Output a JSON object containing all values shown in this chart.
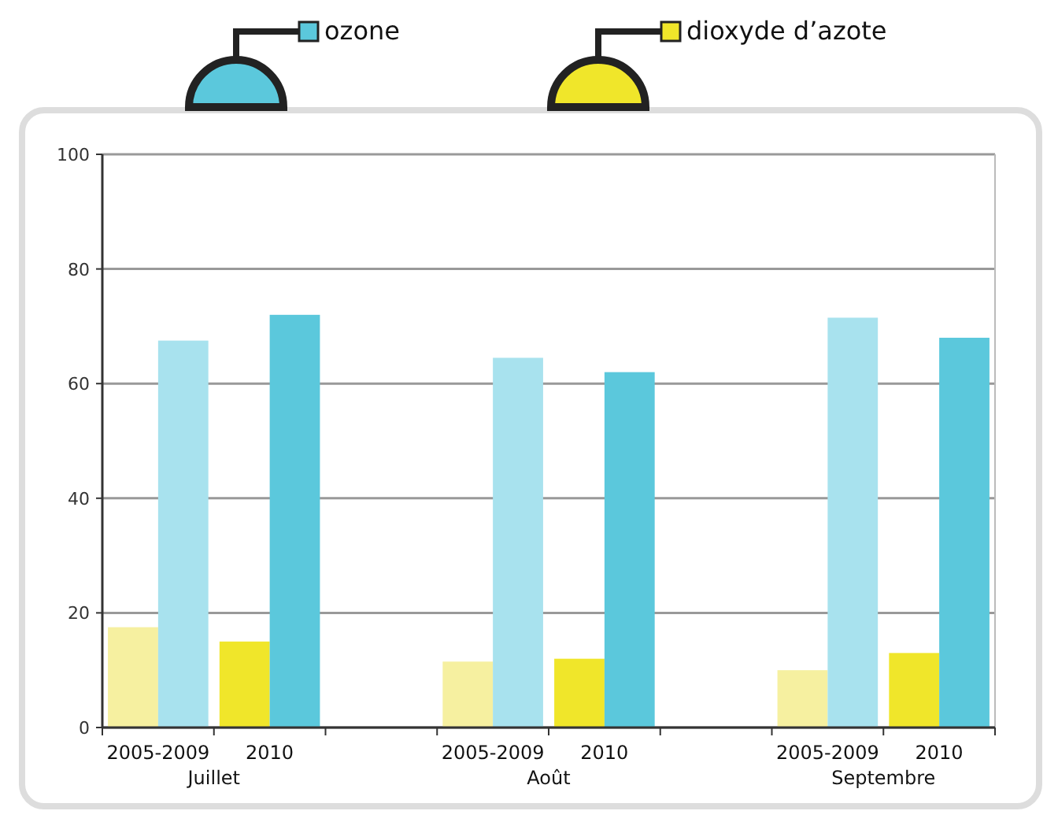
{
  "chart_data": {
    "type": "bar",
    "categories": [
      "2005-2009",
      "2010",
      null,
      "2005-2009",
      "2010",
      null,
      "2005-2009",
      "2010"
    ],
    "series": [
      {
        "name": "dioxyde d’azote",
        "color": "#f0e62a",
        "colors": [
          "#f6f0a0",
          "#f0e62a",
          null,
          "#f6f0a0",
          "#f0e62a",
          null,
          "#f6f0a0",
          "#f0e62a"
        ],
        "values": [
          17.5,
          15,
          null,
          11.5,
          12,
          null,
          10,
          13
        ]
      },
      {
        "name": "ozone",
        "color": "#5bc8dc",
        "colors": [
          "#a8e2ee",
          "#5bc8dc",
          null,
          "#a8e2ee",
          "#5bc8dc",
          null,
          "#a8e2ee",
          "#5bc8dc"
        ],
        "values": [
          67.5,
          72,
          null,
          64.5,
          62,
          null,
          71.5,
          68
        ]
      }
    ],
    "annotations": [
      "Juillet",
      "Août",
      "Septembre"
    ],
    "ylim": [
      0,
      100
    ],
    "yticks": [
      0,
      20,
      40,
      60,
      80,
      100
    ],
    "grid": "y",
    "legend": "top"
  }
}
